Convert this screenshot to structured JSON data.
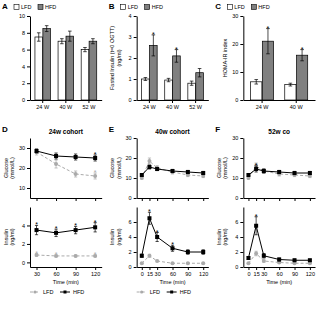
{
  "chart_data": [
    {
      "type": "bar",
      "categories": [
        "24 W",
        "40 W",
        "52 W"
      ],
      "series": [
        {
          "name": "LFD",
          "color": "#ffffff",
          "values": [
            7.5,
            7.0,
            6.0
          ],
          "errors": [
            0.5,
            0.3,
            0.25
          ]
        },
        {
          "name": "HFD",
          "color": "#808080",
          "values": [
            8.5,
            7.6,
            7.0
          ],
          "errors": [
            0.35,
            0.6,
            0.3
          ]
        }
      ],
      "ylim": [
        0,
        10
      ],
      "yticks": [
        0,
        2,
        4,
        6,
        8,
        10
      ],
      "legend": "top",
      "annotations": [
        {
          "text": "A"
        }
      ]
    },
    {
      "type": "bar",
      "y_label": "Fasted Insulin (t=0 OGTT)\n(ng/ml)",
      "categories": [
        "24 W",
        "40 W",
        "52 W"
      ],
      "series": [
        {
          "name": "LFD",
          "color": "#ffffff",
          "values": [
            1.0,
            0.95,
            0.8
          ],
          "errors": [
            0.07,
            0.08,
            0.1
          ]
        },
        {
          "name": "HFD",
          "color": "#808080",
          "values": [
            2.6,
            2.1,
            1.3
          ],
          "errors": [
            0.5,
            0.3,
            0.2
          ]
        }
      ],
      "ylim": [
        0,
        4
      ],
      "yticks": [
        0,
        1,
        2,
        3,
        4
      ],
      "legend": "top",
      "annotations": [
        {
          "text": "B"
        },
        {
          "text": "*",
          "series": 1,
          "index": 0
        },
        {
          "text": "*",
          "series": 1,
          "index": 1
        }
      ]
    },
    {
      "type": "bar",
      "y_label": "HOMA-IR index",
      "categories": [
        "24 W",
        "40 W"
      ],
      "series": [
        {
          "name": "LFD",
          "color": "#ffffff",
          "values": [
            6.5,
            5.5
          ],
          "errors": [
            0.8,
            0.5
          ]
        },
        {
          "name": "HFD",
          "color": "#808080",
          "values": [
            21.0,
            16.0
          ],
          "errors": [
            4.5,
            2.0
          ]
        }
      ],
      "ylim": [
        0,
        30
      ],
      "yticks": [
        0,
        10,
        20,
        30
      ],
      "legend": "top",
      "annotations": [
        {
          "text": "C"
        },
        {
          "text": "*",
          "series": 1,
          "index": 0
        },
        {
          "text": "*",
          "series": 1,
          "index": 1
        }
      ]
    },
    {
      "type": "line",
      "title": "24w cohort",
      "y_label": "Glucose\n(mmol/L)",
      "x": [
        30,
        60,
        90,
        120
      ],
      "series": [
        {
          "color": "#aaaaaa",
          "marker": "circle",
          "line_style": "dashed",
          "values": [
            28.0,
            22.0,
            17.0,
            16.0
          ],
          "errors": [
            1.5,
            2.0,
            1.5,
            1.5
          ]
        },
        {
          "color": "#000000",
          "marker": "square",
          "line_style": "solid",
          "values": [
            28.5,
            26.0,
            25.5,
            25.0
          ],
          "errors": [
            1.0,
            1.5,
            1.5,
            1.5
          ]
        }
      ],
      "xlim": [
        20,
        130
      ],
      "xticks": [
        30,
        60,
        90,
        120
      ],
      "ylim": [
        5,
        35
      ],
      "yticks": [
        10,
        20,
        30
      ],
      "tick_labels": "y",
      "annotations": [
        {
          "text": "D"
        },
        {
          "text": "*",
          "series": 0,
          "index": 3
        },
        {
          "text": "*",
          "series": 1,
          "index": 3
        }
      ]
    },
    {
      "type": "line",
      "x_label": "Time (min)",
      "y_label": "Insulin\n(ng/ml)",
      "x": [
        30,
        60,
        90,
        120
      ],
      "series": [
        {
          "name": "LFD",
          "color": "#aaaaaa",
          "marker": "circle",
          "line_style": "dashed",
          "values": [
            0.8,
            0.7,
            0.7,
            0.7
          ],
          "errors": [
            0.15,
            0.1,
            0.1,
            0.1
          ]
        },
        {
          "name": "HFD",
          "color": "#000000",
          "marker": "square",
          "line_style": "solid",
          "values": [
            3.5,
            3.2,
            3.5,
            3.8
          ],
          "errors": [
            0.5,
            0.4,
            0.4,
            0.5
          ]
        }
      ],
      "xlim": [
        20,
        130
      ],
      "xticks": [
        30,
        60,
        90,
        120
      ],
      "ylim": [
        -0.5,
        6
      ],
      "yticks": [
        0,
        2,
        4
      ],
      "legend": "bottom",
      "annotations": [
        {
          "text": "*",
          "series": 1,
          "index": 0
        },
        {
          "text": "*",
          "series": 1,
          "index": 1
        },
        {
          "text": "*",
          "series": 1,
          "index": 2
        },
        {
          "text": "*",
          "series": 1,
          "index": 3
        },
        {
          "text": "*",
          "series": 0,
          "index": 0
        },
        {
          "text": "*",
          "series": 0,
          "index": 1
        },
        {
          "text": "*",
          "series": 0,
          "index": 3
        }
      ]
    },
    {
      "type": "line",
      "title": "40w cohort",
      "y_label": "Glucose\n(mmol/L)",
      "x": [
        0,
        15,
        30,
        60,
        90,
        120
      ],
      "series": [
        {
          "color": "#aaaaaa",
          "marker": "circle",
          "line_style": "dashed",
          "values": [
            10.0,
            18.5,
            15.0,
            13.0,
            11.5,
            11.0
          ],
          "errors": [
            0.5,
            1.5,
            1.2,
            1.0,
            0.8,
            0.8
          ]
        },
        {
          "color": "#000000",
          "marker": "square",
          "line_style": "solid",
          "values": [
            11.5,
            15.5,
            14.5,
            13.5,
            13.0,
            12.5
          ],
          "errors": [
            0.5,
            1.0,
            0.8,
            0.8,
            0.8,
            0.8
          ]
        }
      ],
      "xlim": [
        -10,
        130
      ],
      "xticks": [
        0,
        15,
        30,
        60,
        90,
        120
      ],
      "ylim": [
        0,
        30
      ],
      "yticks": [
        0,
        10,
        20,
        30
      ],
      "tick_labels": "y",
      "annotations": [
        {
          "text": "E"
        }
      ]
    },
    {
      "type": "line",
      "x_label": "Time (min)",
      "y_label": "Insulin\n(ng/ml)",
      "x": [
        0,
        15,
        30,
        60,
        90,
        120
      ],
      "series": [
        {
          "name": "LFD",
          "color": "#aaaaaa",
          "marker": "circle",
          "line_style": "dashed",
          "values": [
            0.5,
            1.5,
            0.8,
            0.5,
            0.5,
            0.5
          ],
          "errors": [
            0.1,
            0.2,
            0.1,
            0.1,
            0.1,
            0.1
          ]
        },
        {
          "name": "HFD",
          "color": "#000000",
          "marker": "square",
          "line_style": "solid",
          "values": [
            1.5,
            6.5,
            4.0,
            2.5,
            2.0,
            2.0
          ],
          "errors": [
            0.2,
            0.8,
            0.6,
            0.4,
            0.3,
            0.3
          ]
        }
      ],
      "xlim": [
        -10,
        130
      ],
      "xticks": [
        0,
        15,
        30,
        60,
        90,
        120
      ],
      "ylim": [
        0,
        8
      ],
      "yticks": [
        0,
        2,
        4,
        6
      ],
      "legend": "bottom",
      "annotations": [
        {
          "text": "*",
          "series": 1,
          "index": 1
        },
        {
          "text": "*",
          "series": 1,
          "index": 2
        },
        {
          "text": "*",
          "series": 1,
          "index": 3
        }
      ]
    },
    {
      "type": "line",
      "title": "52w co",
      "y_label": "Glucose\n(mmol/L)",
      "x": [
        0,
        15,
        30,
        60,
        90,
        120
      ],
      "series": [
        {
          "color": "#aaaaaa",
          "marker": "circle",
          "line_style": "dashed",
          "values": [
            10.0,
            16.0,
            13.5,
            12.0,
            11.5,
            11.0
          ],
          "errors": [
            0.5,
            1.5,
            1.2,
            1.0,
            0.8,
            0.8
          ]
        },
        {
          "color": "#000000",
          "marker": "square",
          "line_style": "solid",
          "values": [
            11.5,
            14.5,
            13.5,
            13.0,
            12.5,
            12.5
          ],
          "errors": [
            0.5,
            1.5,
            1.0,
            0.8,
            0.8,
            0.8
          ]
        }
      ],
      "xlim": [
        -10,
        130
      ],
      "xticks": [
        0,
        15,
        30,
        60,
        90,
        120
      ],
      "ylim": [
        0,
        30
      ],
      "yticks": [
        0,
        10,
        20,
        30
      ],
      "tick_labels": "y",
      "annotations": [
        {
          "text": "F"
        },
        {
          "text": "*",
          "series": 1,
          "index": 1
        }
      ]
    },
    {
      "type": "line",
      "x_label": "Time (min)",
      "y_label": "Insulin\n(ng/ml)",
      "x": [
        0,
        15,
        30,
        60,
        90,
        120
      ],
      "series": [
        {
          "color": "#aaaaaa",
          "marker": "circle",
          "line_style": "dashed",
          "values": [
            0.5,
            1.8,
            0.8,
            0.6,
            0.5,
            0.5
          ],
          "errors": [
            0.1,
            0.3,
            0.15,
            0.1,
            0.1,
            0.1
          ]
        },
        {
          "color": "#000000",
          "marker": "square",
          "line_style": "solid",
          "values": [
            1.2,
            5.5,
            1.5,
            1.0,
            0.9,
            0.9
          ],
          "errors": [
            0.2,
            1.2,
            0.3,
            0.2,
            0.15,
            0.15
          ]
        }
      ],
      "xlim": [
        -10,
        130
      ],
      "xticks": [
        0,
        15,
        30,
        60,
        90,
        120
      ],
      "ylim": [
        0,
        8
      ],
      "yticks": [
        0,
        2,
        4,
        6
      ],
      "annotations": [
        {
          "text": "*",
          "series": 1,
          "index": 1
        }
      ]
    }
  ]
}
